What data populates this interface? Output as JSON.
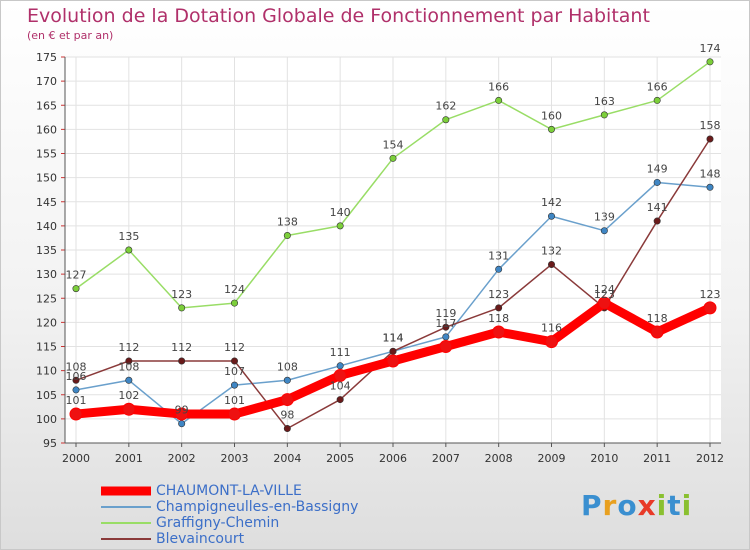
{
  "header": {
    "title": "Evolution de la Dotation Globale de Fonctionnement par Habitant",
    "subtitle": "(en € et par an)"
  },
  "logo": {
    "text": "Proxiti",
    "letters": [
      "P",
      "r",
      "o",
      "x",
      "i",
      "t",
      "i"
    ],
    "colors": [
      "#3a8fd0",
      "#e8a020",
      "#3a8fd0",
      "#e83a28",
      "#8ac030",
      "#3a8fd0",
      "#8ac030"
    ]
  },
  "chart_data": {
    "type": "line",
    "title": "Evolution de la Dotation Globale de Fonctionnement par Habitant",
    "subtitle": "(en € et par an)",
    "xlabel": "",
    "ylabel": "",
    "x": [
      "2000",
      "2001",
      "2002",
      "2003",
      "2004",
      "2005",
      "2006",
      "2007",
      "2008",
      "2009",
      "2010",
      "2011",
      "2012"
    ],
    "ylim": [
      95,
      175
    ],
    "yticks": [
      95,
      100,
      105,
      110,
      115,
      120,
      125,
      130,
      135,
      140,
      145,
      150,
      155,
      160,
      165,
      170,
      175
    ],
    "legend_position": "bottom-left",
    "series": [
      {
        "name": "CHAUMONT-LA-VILLE",
        "color": "#ff0000",
        "marker": "#ee1111",
        "emphasis": true,
        "values": [
          101,
          102,
          101,
          101,
          104,
          109,
          112,
          115,
          118,
          116,
          124,
          118,
          123
        ],
        "labels": [
          "101",
          "102",
          "",
          "101",
          "",
          "",
          "",
          "",
          "118",
          "116",
          "124",
          "118",
          "123"
        ]
      },
      {
        "name": "Champigneulles-en-Bassigny",
        "color": "#6aa0cc",
        "marker": "#3f86c4",
        "emphasis": false,
        "values": [
          106,
          108,
          99,
          107,
          108,
          111,
          114,
          117,
          131,
          142,
          139,
          149,
          148
        ],
        "labels": [
          "106",
          "108",
          "99",
          "107",
          "108",
          "111",
          "114",
          "117",
          "131",
          "142",
          "139",
          "149",
          "148"
        ]
      },
      {
        "name": "Graffigny-Chemin",
        "color": "#99dd66",
        "marker": "#7ccf3a",
        "emphasis": false,
        "values": [
          127,
          135,
          123,
          124,
          138,
          140,
          154,
          162,
          166,
          160,
          163,
          166,
          174
        ],
        "labels": [
          "127",
          "135",
          "123",
          "124",
          "138",
          "140",
          "154",
          "162",
          "166",
          "160",
          "163",
          "166",
          "174"
        ]
      },
      {
        "name": "Blevaincourt",
        "color": "#8a3a3a",
        "marker": "#6a1a1a",
        "emphasis": false,
        "values": [
          108,
          112,
          112,
          112,
          98,
          104,
          114,
          119,
          123,
          132,
          123,
          141,
          158
        ],
        "labels": [
          "108",
          "112",
          "112",
          "112",
          "98",
          "104",
          "114",
          "119",
          "123",
          "132",
          "123",
          "141",
          "158"
        ]
      }
    ]
  }
}
